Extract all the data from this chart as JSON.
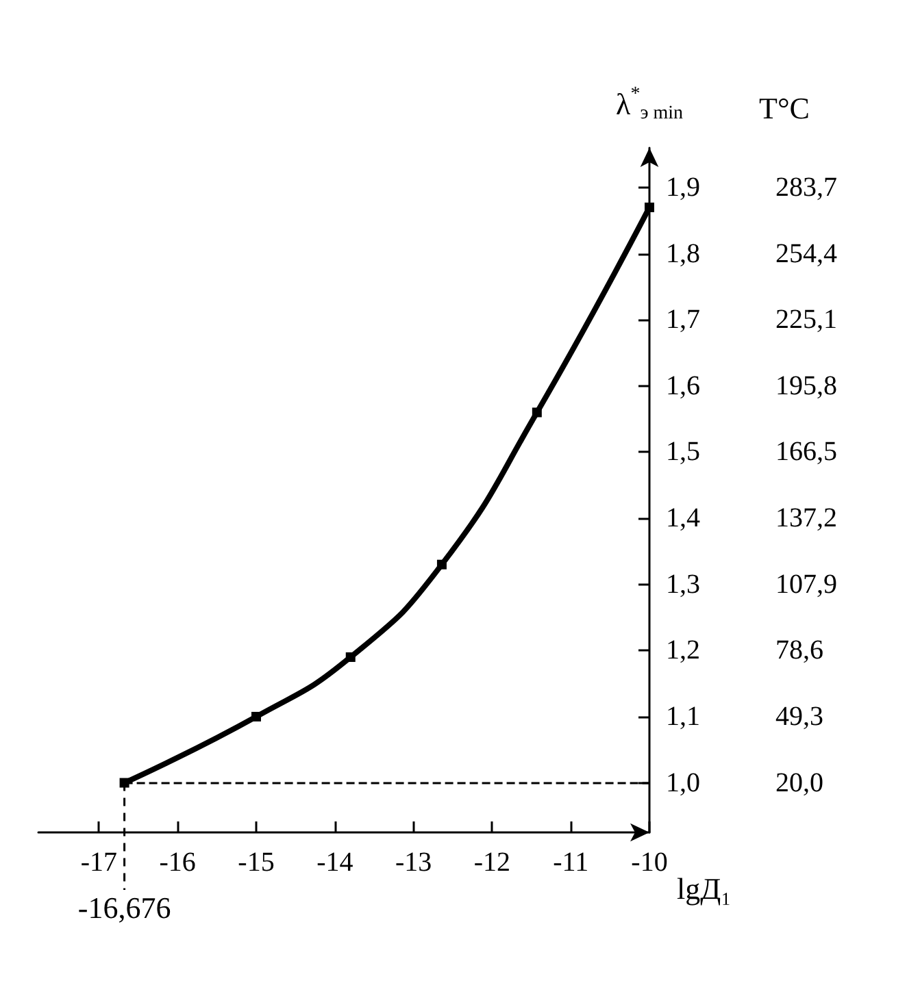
{
  "chart_data": {
    "type": "line",
    "xlabel": "lgД₁",
    "ylabel": "λ$^{*}$$_{э min}$",
    "y2label": "T°C",
    "xlim": [
      -17.77,
      -10
    ],
    "xticks": [
      -17,
      -16,
      -15,
      -14,
      -13,
      -12,
      -11,
      -10
    ],
    "ylim": [
      0.925,
      1.96
    ],
    "yticks": [
      {
        "value": 1.0,
        "label": "1,0"
      },
      {
        "value": 1.1,
        "label": "1,1"
      },
      {
        "value": 1.2,
        "label": "1,2"
      },
      {
        "value": 1.3,
        "label": "1,3"
      },
      {
        "value": 1.4,
        "label": "1,4"
      },
      {
        "value": 1.5,
        "label": "1,5"
      },
      {
        "value": 1.6,
        "label": "1,6"
      },
      {
        "value": 1.7,
        "label": "1,7"
      },
      {
        "value": 1.8,
        "label": "1,8"
      },
      {
        "value": 1.9,
        "label": "1,9"
      }
    ],
    "y2lim": [
      -1.975,
      301.28
    ],
    "y2ticks": [
      {
        "value": 20.0,
        "label": "20,0"
      },
      {
        "value": 49.3,
        "label": "49,3"
      },
      {
        "value": 78.6,
        "label": "78,6"
      },
      {
        "value": 107.9,
        "label": "107,9"
      },
      {
        "value": 137.2,
        "label": "137,2"
      },
      {
        "value": 166.5,
        "label": "166,5"
      },
      {
        "value": 195.8,
        "label": "195,8"
      },
      {
        "value": 225.1,
        "label": "225,1"
      },
      {
        "value": 254.4,
        "label": "254,4"
      },
      {
        "value": 283.7,
        "label": "283,7"
      }
    ],
    "series": [
      {
        "color": "#000000",
        "x": [
          -16.676,
          -15,
          -13.8,
          -12.64,
          -11.43,
          -10
        ],
        "values": [
          1.0,
          1.1,
          1.19,
          1.33,
          1.56,
          1.87
        ]
      }
    ],
    "marker": "square",
    "line_style": "solid",
    "grid": false,
    "ref_lines": [
      {
        "axis": "x",
        "value": -16.676,
        "label": "-16,676",
        "line_style": "dashed"
      },
      {
        "axis": "y",
        "value": 1.0,
        "label": null,
        "line_style": "dashed"
      }
    ]
  }
}
